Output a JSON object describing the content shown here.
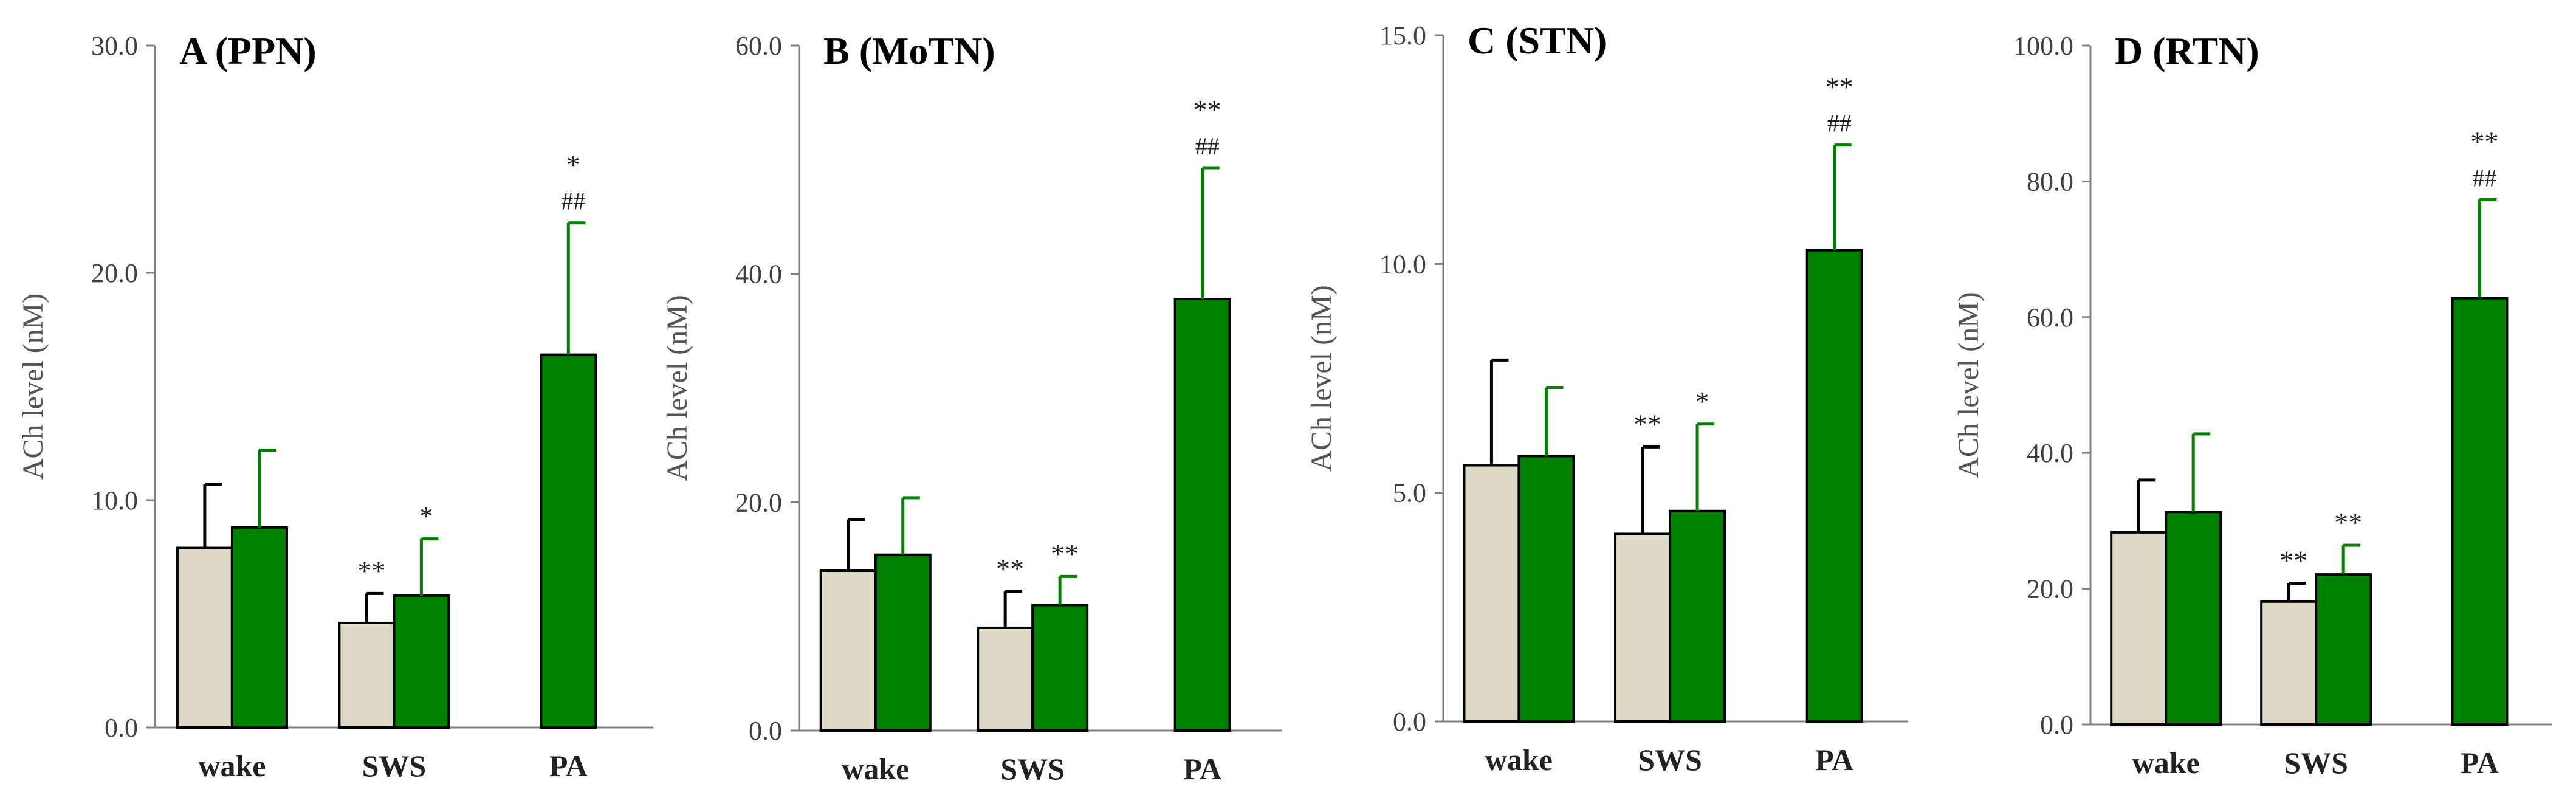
{
  "colors": {
    "wake_bar": "#ddd9c4",
    "green_bar": "#008000",
    "bar_edge": "#000000",
    "error_wake": "#000000",
    "error_green": "#008000"
  },
  "chart_data": [
    {
      "type": "bar",
      "title": "A (PPN)",
      "ylabel": "ACh level (nM)",
      "ylim": [
        0,
        30
      ],
      "yticks": [
        "0.0",
        "10.0",
        "20.0",
        "30.0"
      ],
      "categories": [
        "wake",
        "SWS",
        "PA"
      ],
      "series": [
        {
          "name": "beige",
          "values": [
            7.9,
            4.6,
            null
          ],
          "errors": [
            2.8,
            1.3,
            null
          ]
        },
        {
          "name": "green",
          "values": [
            8.8,
            5.8,
            16.4
          ],
          "errors": [
            3.4,
            2.5,
            5.8
          ]
        }
      ],
      "annotations": [
        {
          "category": 1,
          "series": 0,
          "lines": [
            "**"
          ]
        },
        {
          "category": 1,
          "series": 1,
          "lines": [
            "*"
          ]
        },
        {
          "category": 2,
          "series": 1,
          "lines": [
            "*",
            "##"
          ]
        }
      ]
    },
    {
      "type": "bar",
      "title": "B (MoTN)",
      "ylabel": "ACh level (nM)",
      "ylim": [
        0,
        60
      ],
      "yticks": [
        "0.0",
        "20.0",
        "40.0",
        "60.0"
      ],
      "categories": [
        "wake",
        "SWS",
        "PA"
      ],
      "series": [
        {
          "name": "beige",
          "values": [
            14.0,
            9.0,
            null
          ],
          "errors": [
            4.5,
            3.2,
            null
          ]
        },
        {
          "name": "green",
          "values": [
            15.4,
            11.0,
            37.8
          ],
          "errors": [
            5.0,
            2.5,
            11.5
          ]
        }
      ],
      "annotations": [
        {
          "category": 1,
          "series": 0,
          "lines": [
            "**"
          ]
        },
        {
          "category": 1,
          "series": 1,
          "lines": [
            "**"
          ]
        },
        {
          "category": 2,
          "series": 1,
          "lines": [
            "**",
            "##"
          ]
        }
      ]
    },
    {
      "type": "bar",
      "title": "C (STN)",
      "ylabel": "ACh level (nM)",
      "ylim": [
        0,
        15
      ],
      "yticks": [
        "0.0",
        "5.0",
        "10.0",
        "15.0"
      ],
      "categories": [
        "wake",
        "SWS",
        "PA"
      ],
      "series": [
        {
          "name": "beige",
          "values": [
            5.6,
            4.1,
            null
          ],
          "errors": [
            2.3,
            1.9,
            null
          ]
        },
        {
          "name": "green",
          "values": [
            5.8,
            4.6,
            10.3
          ],
          "errors": [
            1.5,
            1.9,
            2.3
          ]
        }
      ],
      "annotations": [
        {
          "category": 1,
          "series": 0,
          "lines": [
            "**"
          ]
        },
        {
          "category": 1,
          "series": 1,
          "lines": [
            "*"
          ]
        },
        {
          "category": 2,
          "series": 1,
          "lines": [
            "**",
            "##"
          ]
        }
      ]
    },
    {
      "type": "bar",
      "title": "D (RTN)",
      "ylabel": "ACh level (nM)",
      "ylim": [
        0,
        100
      ],
      "yticks": [
        "0.0",
        "20.0",
        "40.0",
        "60.0",
        "80.0",
        "100.0"
      ],
      "categories": [
        "wake",
        "SWS",
        "PA"
      ],
      "series": [
        {
          "name": "beige",
          "values": [
            28.3,
            18.1,
            null
          ],
          "errors": [
            7.7,
            2.7,
            null
          ]
        },
        {
          "name": "green",
          "values": [
            31.3,
            22.1,
            62.8
          ],
          "errors": [
            11.5,
            4.3,
            14.5
          ]
        }
      ],
      "annotations": [
        {
          "category": 1,
          "series": 0,
          "lines": [
            "**"
          ]
        },
        {
          "category": 1,
          "series": 1,
          "lines": [
            "**"
          ]
        },
        {
          "category": 2,
          "series": 1,
          "lines": [
            "**",
            "##"
          ]
        }
      ]
    }
  ]
}
